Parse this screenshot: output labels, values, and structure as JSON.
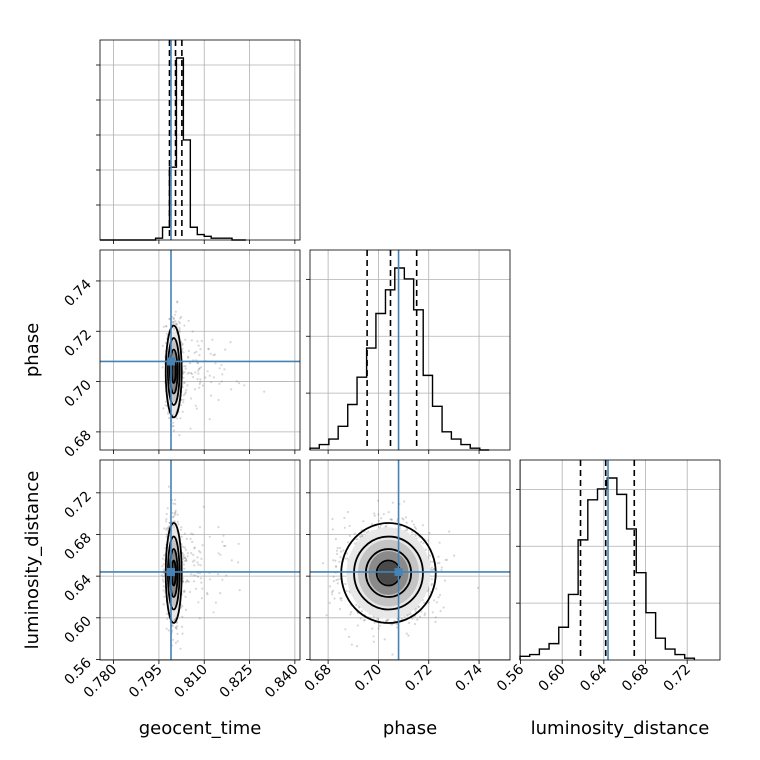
{
  "chart_data": {
    "type": "corner",
    "parameters": [
      "geocent_time",
      "phase",
      "luminosity_distance"
    ],
    "truths": {
      "geocent_time": 0.799,
      "phase": 0.708,
      "luminosity_distance": 0.644
    },
    "truth_color": "#4682b4",
    "quantiles": {
      "geocent_time": [
        0.7985,
        0.8005,
        0.8026
      ],
      "phase": [
        0.6955,
        0.7048,
        0.7152
      ],
      "luminosity_distance": [
        0.6176,
        0.6418,
        0.6692
      ]
    },
    "axes": {
      "geocent_time": {
        "range": [
          0.7755,
          0.8417
        ],
        "ticks": [
          "0.780",
          "0.795",
          "0.810",
          "0.825",
          "0.840"
        ]
      },
      "phase": {
        "range": [
          0.6728,
          0.7523
        ],
        "ticks": [
          "0.68",
          "0.70",
          "0.72",
          "0.74"
        ]
      },
      "luminosity_distance": {
        "range": [
          0.5595,
          0.7515
        ],
        "ticks": [
          "0.56",
          "0.60",
          "0.64",
          "0.68",
          "0.72"
        ]
      }
    },
    "histograms": {
      "geocent_time": {
        "edges": [
          0.7755,
          0.7778,
          0.7801,
          0.7824,
          0.7847,
          0.787,
          0.7893,
          0.7916,
          0.7939,
          0.7962,
          0.7985,
          0.8008,
          0.8031,
          0.8054,
          0.8077,
          0.81,
          0.8123,
          0.8146,
          0.8169,
          0.8192,
          0.8215,
          0.8238
        ],
        "counts": [
          0,
          0,
          0,
          0,
          0,
          0,
          0,
          0,
          1,
          7,
          40,
          100,
          55,
          7,
          3,
          2,
          1,
          1,
          1,
          0,
          0
        ]
      },
      "phase": {
        "edges": [
          0.6728,
          0.6765,
          0.6803,
          0.684,
          0.6878,
          0.6915,
          0.6953,
          0.699,
          0.7028,
          0.7065,
          0.7103,
          0.714,
          0.7178,
          0.7215,
          0.7253,
          0.729,
          0.7328,
          0.7365,
          0.7403,
          0.744
        ],
        "counts": [
          1,
          3,
          6,
          13,
          25,
          40,
          56,
          75,
          88,
          100,
          94,
          77,
          41,
          24,
          10,
          6,
          3,
          1,
          0
        ]
      },
      "luminosity_distance": {
        "edges": [
          0.5595,
          0.5688,
          0.5781,
          0.5874,
          0.5967,
          0.606,
          0.6153,
          0.6246,
          0.6339,
          0.6432,
          0.6525,
          0.6618,
          0.6711,
          0.6804,
          0.6897,
          0.699,
          0.7083,
          0.7176,
          0.7269
        ],
        "counts": [
          2,
          3,
          6,
          9,
          18,
          36,
          66,
          88,
          94,
          100,
          91,
          72,
          48,
          26,
          12,
          6,
          3,
          1
        ]
      }
    },
    "panels_2d": [
      {
        "x": "geocent_time",
        "y": "phase",
        "center": [
          0.7999,
          0.704
        ],
        "sigma": [
          0.0011,
          0.0076
        ],
        "n_points": 1100
      },
      {
        "x": "geocent_time",
        "y": "luminosity_distance",
        "center": [
          0.7999,
          0.643
        ],
        "sigma": [
          0.0011,
          0.02
        ],
        "n_points": 1100
      },
      {
        "x": "phase",
        "y": "luminosity_distance",
        "center": [
          0.704,
          0.643
        ],
        "sigma": [
          0.0076,
          0.02
        ],
        "n_points": 1400
      }
    ]
  },
  "axis_labels": {
    "x_col1": "geocent_time",
    "x_col2": "phase",
    "x_col3": "luminosity_distance",
    "y_row2": "phase",
    "y_row3": "luminosity_distance"
  }
}
